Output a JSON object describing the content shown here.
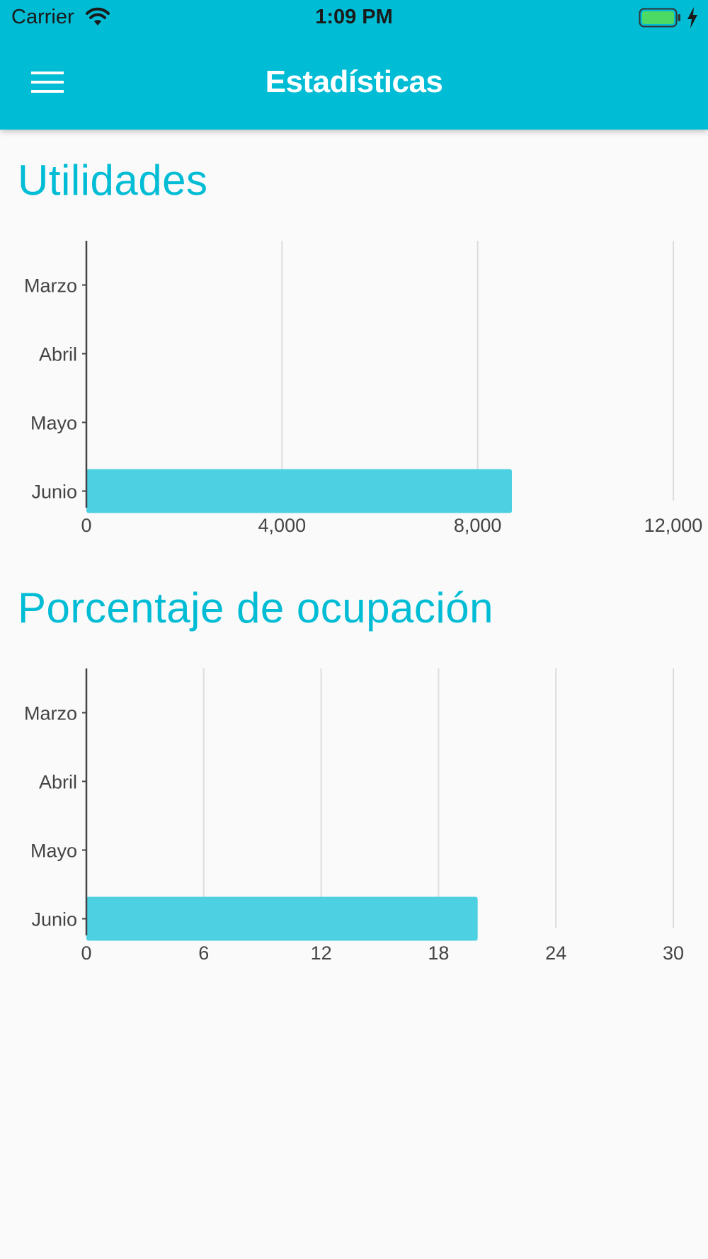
{
  "status_bar": {
    "carrier": "Carrier",
    "time": "1:09 PM",
    "icons": [
      "wifi-icon",
      "battery-icon",
      "charging-bolt-icon"
    ]
  },
  "header": {
    "title": "Estadísticas",
    "menu_icon": "hamburger-menu-icon",
    "background_color": "#00bcd4"
  },
  "colors": {
    "accent": "#00bcd4",
    "bar": "#4dd0e1",
    "background": "#fafafa"
  },
  "sections": [
    {
      "title": "Utilidades"
    },
    {
      "title": "Porcentaje de ocupación"
    }
  ],
  "chart_data": [
    {
      "type": "bar",
      "orientation": "horizontal",
      "title": "Utilidades",
      "categories": [
        "Marzo",
        "Abril",
        "Mayo",
        "Junio"
      ],
      "values": [
        0,
        0,
        0,
        8700
      ],
      "xlim": [
        0,
        12000
      ],
      "ticks": [
        0,
        4000,
        8000,
        12000
      ],
      "tick_labels": [
        "0",
        "4,000",
        "8,000",
        "12,000"
      ],
      "grid": true
    },
    {
      "type": "bar",
      "orientation": "horizontal",
      "title": "Porcentaje de ocupación",
      "categories": [
        "Marzo",
        "Abril",
        "Mayo",
        "Junio"
      ],
      "values": [
        0,
        0,
        0,
        20
      ],
      "xlim": [
        0,
        30
      ],
      "ticks": [
        0,
        6,
        12,
        18,
        24,
        30
      ],
      "tick_labels": [
        "0",
        "6",
        "12",
        "18",
        "24",
        "30"
      ],
      "grid": true
    }
  ]
}
